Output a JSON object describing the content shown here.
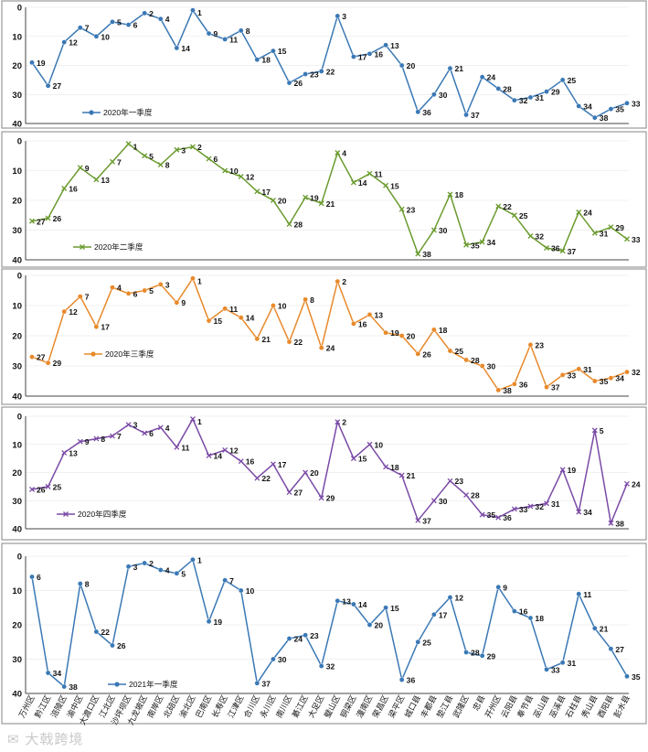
{
  "categories": [
    "万州区",
    "黔江区",
    "涪陵区",
    "渝中区",
    "大渡口区",
    "江北区",
    "沙坪坝区",
    "九龙坡区",
    "南岸区",
    "北碚区",
    "渝北区",
    "巴南区",
    "长寿区",
    "江津区",
    "合川区",
    "永川区",
    "南川区",
    "綦江区",
    "大足区",
    "璧山区",
    "铜梁区",
    "潼南区",
    "荣昌区",
    "梁平区",
    "城口县",
    "丰都县",
    "垫江县",
    "武隆区",
    "忠县",
    "开州区",
    "云阳县",
    "奉节县",
    "巫山县",
    "巫溪县",
    "石柱县",
    "秀山县",
    "酉阳县",
    "彭水县"
  ],
  "watermark": "大戟跨境",
  "chart_data": [
    {
      "type": "line",
      "series_name": "2020年一季度",
      "color": "#3a78b5",
      "marker": "circle",
      "ylim": [
        40,
        0
      ],
      "yticks": [
        "0",
        "10",
        "20",
        "30",
        "40"
      ],
      "show_x_labels": false,
      "values": [
        19,
        27,
        12,
        7,
        10,
        5,
        6,
        2,
        4,
        14,
        1,
        9,
        11,
        8,
        18,
        15,
        26,
        23,
        22,
        3,
        17,
        16,
        13,
        20,
        36,
        30,
        21,
        37,
        24,
        28,
        32,
        31,
        29,
        25,
        34,
        38,
        35,
        33
      ]
    },
    {
      "type": "line",
      "series_name": "2020年二季度",
      "color": "#6a9a2e",
      "marker": "x",
      "ylim": [
        40,
        0
      ],
      "yticks": [
        "0",
        "10",
        "20",
        "30",
        "40"
      ],
      "show_x_labels": false,
      "values": [
        27,
        26,
        16,
        9,
        13,
        7,
        1,
        5,
        8,
        3,
        2,
        6,
        10,
        12,
        17,
        20,
        28,
        19,
        21,
        4,
        14,
        11,
        15,
        23,
        38,
        30,
        18,
        35,
        34,
        22,
        25,
        32,
        36,
        37,
        24,
        31,
        29,
        33
      ]
    },
    {
      "type": "line",
      "series_name": "2020年三季度",
      "color": "#e8892a",
      "marker": "circle",
      "ylim": [
        40,
        0
      ],
      "yticks": [
        "0",
        "10",
        "20",
        "30",
        "40"
      ],
      "show_x_labels": false,
      "values": [
        27,
        29,
        12,
        7,
        17,
        4,
        6,
        5,
        3,
        9,
        1,
        15,
        11,
        14,
        21,
        10,
        22,
        8,
        24,
        2,
        16,
        13,
        19,
        20,
        26,
        18,
        25,
        28,
        30,
        38,
        36,
        23,
        37,
        33,
        31,
        35,
        34,
        32
      ]
    },
    {
      "type": "line",
      "series_name": "2020年四季度",
      "color": "#7a4aa6",
      "marker": "x",
      "ylim": [
        40,
        0
      ],
      "yticks": [
        "0",
        "10",
        "20",
        "30",
        "40"
      ],
      "show_x_labels": false,
      "values": [
        26,
        25,
        13,
        9,
        8,
        7,
        3,
        6,
        4,
        11,
        1,
        14,
        12,
        16,
        22,
        17,
        27,
        20,
        29,
        2,
        15,
        10,
        18,
        21,
        37,
        30,
        23,
        28,
        35,
        36,
        33,
        32,
        31,
        19,
        34,
        5,
        38,
        24
      ]
    },
    {
      "type": "line",
      "series_name": "2021年一季度",
      "color": "#3a78b5",
      "marker": "circle",
      "ylim": [
        40,
        0
      ],
      "yticks": [
        "0",
        "10",
        "20",
        "30",
        "40"
      ],
      "show_x_labels": true,
      "values": [
        6,
        34,
        38,
        8,
        22,
        26,
        3,
        2,
        4,
        5,
        1,
        19,
        7,
        10,
        37,
        30,
        24,
        23,
        32,
        13,
        14,
        20,
        15,
        36,
        25,
        17,
        12,
        28,
        29,
        9,
        16,
        18,
        33,
        31,
        11,
        21,
        27,
        35
      ]
    }
  ]
}
